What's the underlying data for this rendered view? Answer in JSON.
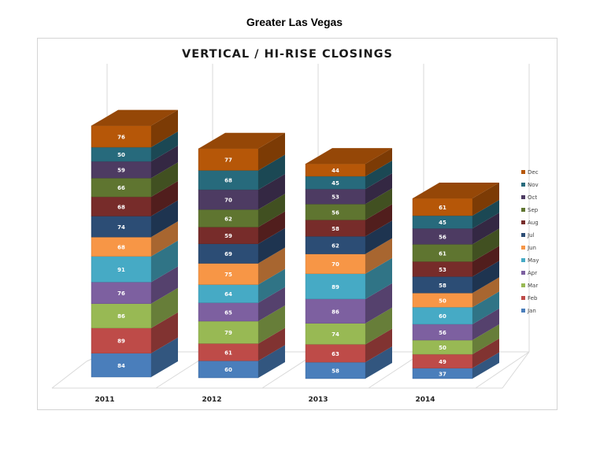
{
  "page_title": "Greater Las Vegas",
  "chart_data": {
    "type": "bar",
    "stacked": true,
    "three_d": true,
    "title": "VERTICAL / HI-RISE CLOSINGS",
    "xlabel": "",
    "ylabel": "",
    "categories": [
      "2011",
      "2012",
      "2013",
      "2014"
    ],
    "legend_position": "right",
    "grid": true,
    "series": [
      {
        "name": "Jan",
        "color": "#4a7ebb",
        "values": [
          84,
          60,
          58,
          37
        ]
      },
      {
        "name": "Feb",
        "color": "#be4b48",
        "values": [
          89,
          61,
          63,
          49
        ]
      },
      {
        "name": "Mar",
        "color": "#98b954",
        "values": [
          86,
          79,
          74,
          50
        ]
      },
      {
        "name": "Apr",
        "color": "#7d60a0",
        "values": [
          76,
          65,
          86,
          56
        ]
      },
      {
        "name": "May",
        "color": "#46aac5",
        "values": [
          91,
          64,
          89,
          60
        ]
      },
      {
        "name": "Jun",
        "color": "#f79646",
        "values": [
          68,
          75,
          70,
          50
        ]
      },
      {
        "name": "Jul",
        "color": "#2c4d75",
        "values": [
          74,
          69,
          62,
          58
        ]
      },
      {
        "name": "Aug",
        "color": "#772c2a",
        "values": [
          68,
          59,
          58,
          53
        ]
      },
      {
        "name": "Sep",
        "color": "#5f7530",
        "values": [
          66,
          62,
          56,
          61
        ]
      },
      {
        "name": "Oct",
        "color": "#4d3b62",
        "values": [
          59,
          70,
          53,
          56
        ]
      },
      {
        "name": "Nov",
        "color": "#276a7c",
        "values": [
          50,
          68,
          45,
          45
        ]
      },
      {
        "name": "Dec",
        "color": "#b65708",
        "values": [
          76,
          77,
          44,
          61
        ]
      }
    ]
  }
}
